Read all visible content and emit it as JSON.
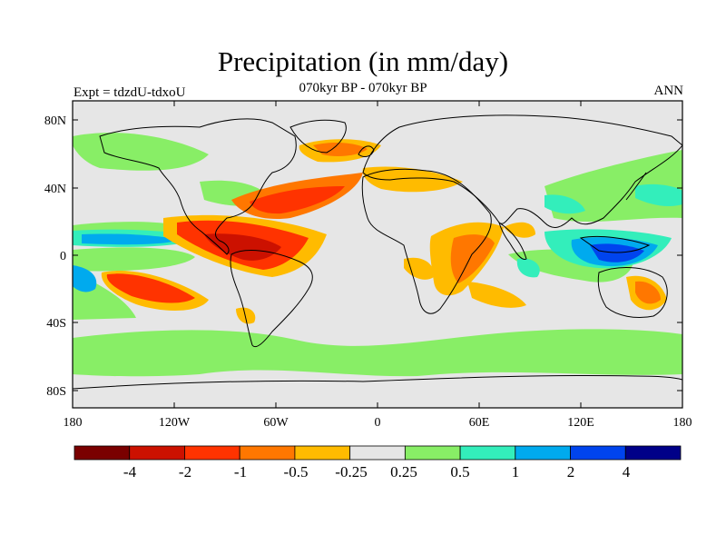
{
  "title": "Precipitation (in mm/day)",
  "subtitle": "070kyr BP - 070kyr BP",
  "left_label": "Expt = tdzdU-tdxoU",
  "right_label": "ANN",
  "y_ticks": [
    "80N",
    "40N",
    "0",
    "40S",
    "80S"
  ],
  "x_ticks": [
    "180",
    "120W",
    "60W",
    "0",
    "60E",
    "120E",
    "180"
  ],
  "colorbar": {
    "colors": [
      "#7a0000",
      "#cc1100",
      "#ff3300",
      "#ff7700",
      "#ffbb00",
      "#e6e6e6",
      "#88ee66",
      "#33eebb",
      "#00aaee",
      "#0044ee",
      "#000088"
    ],
    "labels": [
      "-4",
      "-2",
      "-1",
      "-0.5",
      "-0.25",
      "0.25",
      "0.5",
      "1",
      "2",
      "4"
    ]
  },
  "colors": {
    "background": "#e6e6e6",
    "coast": "#000000"
  }
}
